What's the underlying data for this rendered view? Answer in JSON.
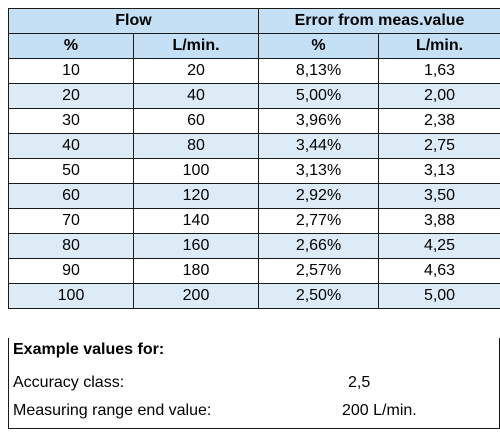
{
  "table": {
    "group_headers": [
      "Flow",
      "Error from meas.value"
    ],
    "sub_headers": [
      "%",
      "L/min.",
      "%",
      "L/min."
    ],
    "rows": [
      [
        "10",
        "20",
        "8,13%",
        "1,63"
      ],
      [
        "20",
        "40",
        "5,00%",
        "2,00"
      ],
      [
        "30",
        "60",
        "3,96%",
        "2,38"
      ],
      [
        "40",
        "80",
        "3,44%",
        "2,75"
      ],
      [
        "50",
        "100",
        "3,13%",
        "3,13"
      ],
      [
        "60",
        "120",
        "2,92%",
        "3,50"
      ],
      [
        "70",
        "140",
        "2,77%",
        "3,88"
      ],
      [
        "80",
        "160",
        "2,66%",
        "4,25"
      ],
      [
        "90",
        "180",
        "2,57%",
        "4,63"
      ],
      [
        "100",
        "200",
        "2,50%",
        "5,00"
      ]
    ]
  },
  "footer": {
    "title": "Example values for:",
    "accuracy_label": "Accuracy class:",
    "accuracy_value": "2,5",
    "range_label": "Measuring range end value:",
    "range_value": "200 L/min."
  },
  "colors": {
    "header_bg": "#c5e0f5",
    "stripe_bg": "#ddebf7",
    "border": "#1a1a1a"
  }
}
